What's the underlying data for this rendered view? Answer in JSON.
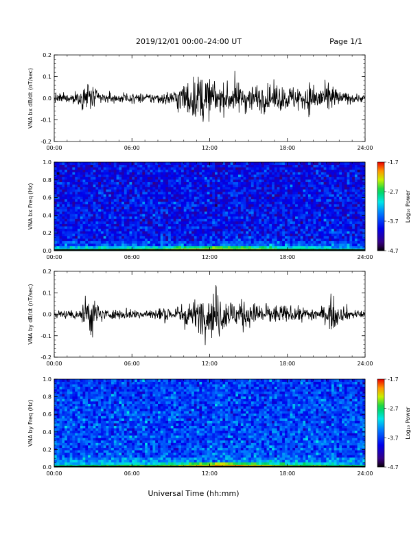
{
  "header": {
    "title": "2019/12/01  00:00–24:00 UT",
    "page": "Page 1/1"
  },
  "xlabel": "Universal Time (hh:mm)",
  "chart_data": [
    {
      "type": "line",
      "ylabel": "VNA bx dB/dt (nT/sec)",
      "xlim": [
        0,
        24
      ],
      "ylim": [
        -0.2,
        0.2
      ],
      "x_ticks": [
        "00:00",
        "06:00",
        "12:00",
        "18:00",
        "24:00"
      ],
      "y_ticks": [
        "-0.2",
        "-0.1",
        "0.0",
        "0.1",
        "0.2"
      ],
      "series": [
        {
          "x": [
            0,
            1,
            2,
            2.6,
            3,
            4,
            5,
            6,
            7,
            8,
            9,
            9.5,
            10,
            11,
            11.5,
            12,
            12.5,
            13,
            14,
            15,
            16,
            17,
            18,
            19,
            20,
            21,
            21.6,
            22,
            23,
            24
          ],
          "amplitude": [
            0.018,
            0.02,
            0.03,
            0.09,
            0.04,
            0.02,
            0.02,
            0.02,
            0.02,
            0.025,
            0.03,
            0.05,
            0.07,
            0.09,
            0.11,
            0.08,
            0.07,
            0.06,
            0.065,
            0.06,
            0.06,
            0.055,
            0.05,
            0.055,
            0.07,
            0.05,
            0.065,
            0.03,
            0.02,
            0.015
          ],
          "color": "#000000"
        }
      ]
    },
    {
      "type": "heatmap",
      "ylabel": "VNA bx Freq (Hz)",
      "xlim": [
        0,
        24
      ],
      "ylim": [
        0.0,
        1.0
      ],
      "x_ticks": [
        "00:00",
        "06:00",
        "12:00",
        "18:00",
        "24:00"
      ],
      "y_ticks": [
        "0.0",
        "0.2",
        "0.4",
        "0.6",
        "0.8",
        "1.0"
      ],
      "colorbar": {
        "label": "Log₁₀ Power",
        "ticks": [
          "-1.7",
          "-2.7",
          "-3.7",
          "-4.7"
        ],
        "range": [
          -4.7,
          -1.7
        ]
      },
      "background_level": -3.85,
      "low_freq_peak_x": [
        0,
        4,
        8,
        10,
        12,
        14,
        16,
        18,
        20,
        22,
        24
      ],
      "low_freq_peak_level": [
        -2.9,
        -2.7,
        -2.6,
        -2.3,
        -2.2,
        -2.3,
        -2.4,
        -2.6,
        -2.7,
        -2.8,
        -3.0
      ]
    },
    {
      "type": "line",
      "ylabel": "VNA by dB/dt (nT/sec)",
      "xlim": [
        0,
        24
      ],
      "ylim": [
        -0.2,
        0.2
      ],
      "x_ticks": [
        "00:00",
        "06:00",
        "12:00",
        "18:00",
        "24:00"
      ],
      "y_ticks": [
        "-0.2",
        "-0.1",
        "0.0",
        "0.1",
        "0.2"
      ],
      "series": [
        {
          "x": [
            0,
            1,
            2,
            2.4,
            2.8,
            3.2,
            4,
            5,
            6,
            7,
            8,
            9,
            10,
            11,
            11.5,
            12,
            12.5,
            13,
            13.5,
            14,
            15,
            16,
            17,
            18,
            19,
            20,
            21,
            21.5,
            22,
            23,
            24
          ],
          "amplitude": [
            0.015,
            0.018,
            0.03,
            0.07,
            0.11,
            0.05,
            0.02,
            0.02,
            0.02,
            0.022,
            0.025,
            0.03,
            0.045,
            0.06,
            0.09,
            0.08,
            0.12,
            0.08,
            0.07,
            0.06,
            0.05,
            0.045,
            0.04,
            0.035,
            0.03,
            0.03,
            0.035,
            0.09,
            0.03,
            0.02,
            0.015
          ],
          "color": "#000000"
        }
      ]
    },
    {
      "type": "heatmap",
      "ylabel": "VNA by Freq (Hz)",
      "xlim": [
        0,
        24
      ],
      "ylim": [
        0.0,
        1.0
      ],
      "x_ticks": [
        "00:00",
        "06:00",
        "12:00",
        "18:00",
        "24:00"
      ],
      "y_ticks": [
        "0.0",
        "0.2",
        "0.4",
        "0.6",
        "0.8",
        "1.0"
      ],
      "colorbar": {
        "label": "Log₁₀ Power",
        "ticks": [
          "-1.7",
          "-2.7",
          "-3.7",
          "-4.7"
        ],
        "range": [
          -4.7,
          -1.7
        ]
      },
      "background_level": -3.6,
      "low_freq_peak_x": [
        0,
        4,
        8,
        10,
        12,
        13,
        14,
        16,
        18,
        20,
        22,
        24
      ],
      "low_freq_peak_level": [
        -2.8,
        -2.7,
        -2.6,
        -2.4,
        -2.1,
        -2.0,
        -2.1,
        -2.3,
        -2.5,
        -2.6,
        -2.7,
        -2.9
      ]
    }
  ]
}
